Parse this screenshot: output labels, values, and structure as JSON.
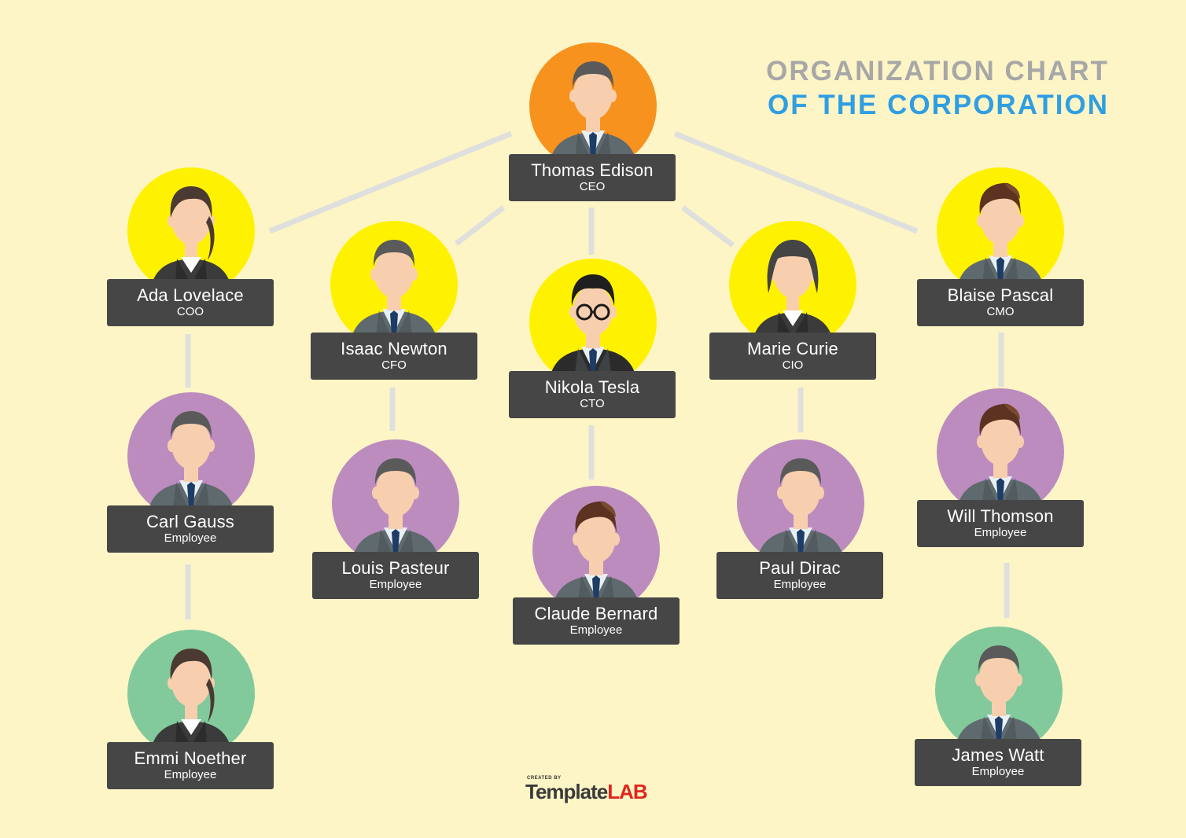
{
  "header": {
    "title_line_1": "ORGANIZATION CHART",
    "title_line_2": "OF THE CORPORATION"
  },
  "colors": {
    "background": "#fdf5c6",
    "ceo_circle": "#f7921e",
    "executive_circle": "#fff200",
    "employee_circle": "#bc8cbf",
    "junior_circle": "#82ca9c",
    "card": "#464646",
    "connector": "#dfe0dd",
    "title_gray": "#a7a7a7",
    "title_blue": "#2f9ee2"
  },
  "people": [
    {
      "name": "Thomas Edison",
      "role": "CEO",
      "circle": "orange",
      "avatar": "male-suit-icon"
    },
    {
      "name": "Ada Lovelace",
      "role": "COO",
      "circle": "yellow",
      "avatar": "female-ponytail-icon"
    },
    {
      "name": "Isaac Newton",
      "role": "CFO",
      "circle": "yellow",
      "avatar": "male-suit-icon"
    },
    {
      "name": "Nikola Tesla",
      "role": "CTO",
      "circle": "yellow",
      "avatar": "male-glasses-icon"
    },
    {
      "name": "Marie Curie",
      "role": "CIO",
      "circle": "yellow",
      "avatar": "female-bob-icon"
    },
    {
      "name": "Blaise Pascal",
      "role": "CMO",
      "circle": "yellow",
      "avatar": "male-quiff-icon"
    },
    {
      "name": "Carl Gauss",
      "role": "Employee",
      "circle": "purple",
      "avatar": "male-suit-icon"
    },
    {
      "name": "Louis Pasteur",
      "role": "Employee",
      "circle": "purple",
      "avatar": "male-suit-icon"
    },
    {
      "name": "Claude Bernard",
      "role": "Employee",
      "circle": "purple",
      "avatar": "male-quiff-icon"
    },
    {
      "name": "Paul Dirac",
      "role": "Employee",
      "circle": "purple",
      "avatar": "male-suit-icon"
    },
    {
      "name": "Will Thomson",
      "role": "Employee",
      "circle": "purple",
      "avatar": "male-quiff-icon"
    },
    {
      "name": "Emmi Noether",
      "role": "Employee",
      "circle": "green",
      "avatar": "female-ponytail-icon"
    },
    {
      "name": "James Watt",
      "role": "Employee",
      "circle": "green",
      "avatar": "male-suit-icon"
    }
  ],
  "brand": {
    "created_by": "CREATED BY",
    "name_part_1": "Template",
    "name_part_2": "LAB"
  }
}
